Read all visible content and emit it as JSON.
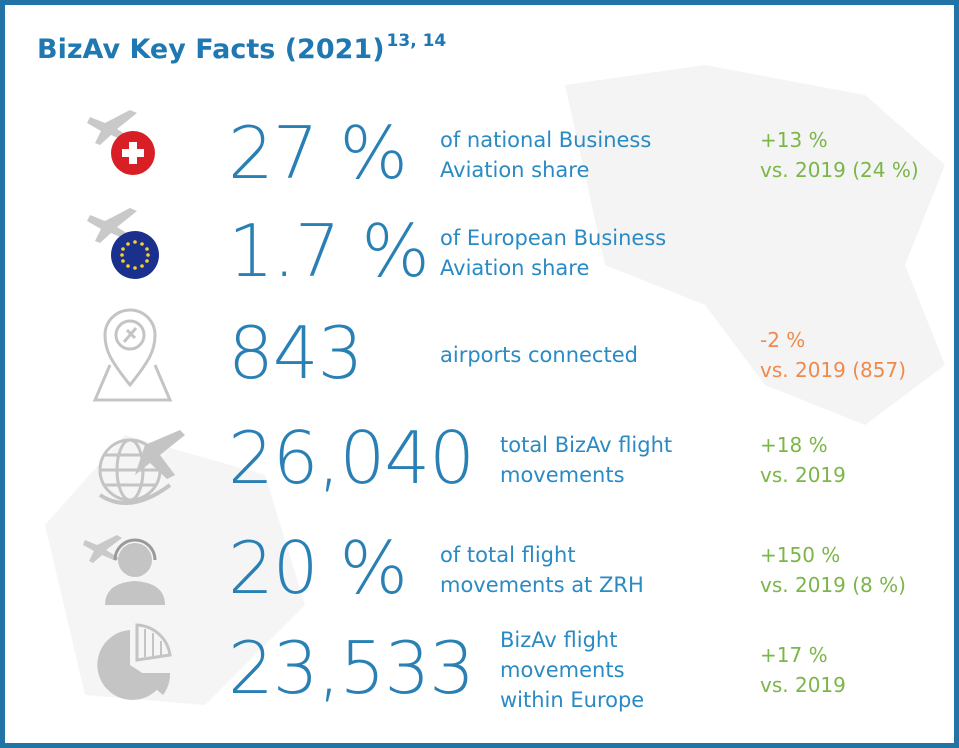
{
  "header": {
    "title": "BizAv Key Facts (2021)",
    "superscript": "13, 14"
  },
  "facts": [
    {
      "value": "27 %",
      "description": [
        "of national Business",
        "Aviation share"
      ],
      "change": "+13 %",
      "comparison": "vs. 2019 (24 %)",
      "color": "#7ab648"
    },
    {
      "value": "1.7 %",
      "description": [
        "of European Business",
        "Aviation share"
      ]
    },
    {
      "value": "843",
      "description": [
        "airports connected"
      ],
      "change": "-2 %",
      "comparison": "vs. 2019 (857)",
      "color": "#ee8a4c"
    },
    {
      "value": "26,040",
      "description": [
        "total BizAv flight",
        "movements"
      ],
      "change": "+18 %",
      "comparison": "vs. 2019",
      "color": "#7ab648"
    },
    {
      "value": "20 %",
      "description": [
        "of total flight",
        "movements at ZRH"
      ],
      "change": "+150 %",
      "comparison": "vs. 2019 (8 %)",
      "color": "#7ab648"
    },
    {
      "value": "23,533",
      "description": [
        "BizAv flight",
        "movements",
        "within Europe"
      ],
      "change": "+17 %",
      "comparison": "vs. 2019",
      "color": "#7ab648"
    }
  ]
}
